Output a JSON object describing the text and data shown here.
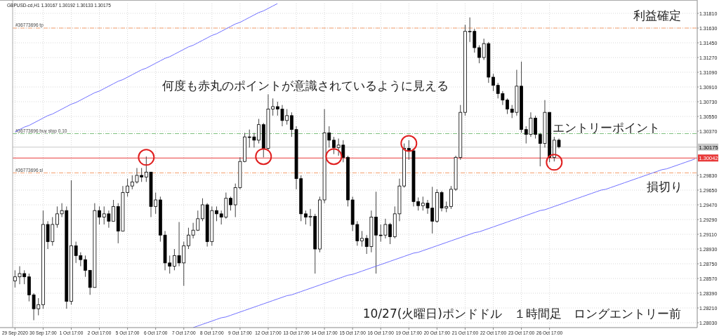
{
  "chart_data": {
    "type": "candlestick",
    "title": "GBPUSD-cd,H1  1.30167 1.30192 1.30133 1.30175",
    "categories": [
      "29 Sep 2020",
      null,
      null,
      null,
      null,
      null,
      "30 Sep 17:00",
      null,
      null,
      null,
      null,
      null,
      "1 Oct 17:00",
      null,
      null,
      null,
      null,
      null,
      "2 Oct 17:00",
      null,
      null,
      null,
      null,
      null,
      "5 Oct 17:00",
      null,
      null,
      null,
      null,
      null,
      "6 Oct 17:00",
      null,
      null,
      null,
      null,
      null,
      "7 Oct 17:00",
      null,
      null,
      null,
      null,
      null,
      "8 Oct 17:00",
      null,
      null,
      null,
      null,
      null,
      "9 Oct 17:00",
      null,
      null,
      null,
      null,
      null,
      "12 Oct 17:00",
      null,
      null,
      null,
      null,
      null,
      "13 Oct 17:00",
      null,
      null,
      null,
      null,
      null,
      "14 Oct 17:00",
      null,
      null,
      null,
      null,
      null,
      "15 Oct 17:00",
      null,
      null,
      null,
      null,
      null,
      "16 Oct 17:00",
      null,
      null,
      null,
      null,
      null,
      "19 Oct 17:00",
      null,
      null,
      null,
      null,
      null,
      "20 Oct 17:00",
      null,
      null,
      null,
      null,
      null,
      "21 Oct 17:00",
      null,
      null,
      null,
      null,
      null,
      "22 Oct 17:00",
      null,
      null,
      null,
      null,
      null,
      "23 Oct 17:00",
      null,
      null,
      null,
      null,
      null,
      "26 Oct 17:00",
      null,
      null,
      null,
      null,
      null,
      null,
      null,
      null,
      null,
      null,
      null,
      null,
      null,
      null,
      null,
      null,
      null,
      null,
      null,
      null,
      null,
      null,
      null,
      null,
      null,
      null,
      null,
      null,
      null,
      null,
      null
    ],
    "ohlc": [
      [
        1.2854,
        1.2867,
        1.2846,
        1.2859
      ],
      [
        1.2859,
        1.2872,
        1.285,
        1.2863
      ],
      [
        1.2863,
        1.2867,
        1.285,
        1.2859
      ],
      [
        1.2859,
        1.2863,
        1.2829,
        1.2837
      ],
      [
        1.2837,
        1.2839,
        1.2806,
        1.282
      ],
      [
        1.282,
        1.2833,
        1.2812,
        1.2825
      ],
      [
        1.2825,
        1.294,
        1.282,
        1.2923
      ],
      [
        1.2923,
        1.2927,
        1.2893,
        1.2902
      ],
      [
        1.2902,
        1.2932,
        1.2897,
        1.2923
      ],
      [
        1.2923,
        1.2945,
        1.2919,
        1.2936
      ],
      [
        1.2936,
        1.2949,
        1.2932,
        1.294
      ],
      [
        1.294,
        1.2945,
        1.282,
        1.2829
      ],
      [
        1.2829,
        1.2977,
        1.2825,
        1.2897
      ],
      [
        1.2897,
        1.2902,
        1.2876,
        1.2885
      ],
      [
        1.2885,
        1.2889,
        1.2872,
        1.288
      ],
      [
        1.288,
        1.2885,
        1.2859,
        1.2867
      ],
      [
        1.2867,
        1.2867,
        1.2837,
        1.2846
      ],
      [
        1.2846,
        1.2949,
        1.2846,
        1.294
      ],
      [
        1.294,
        1.2945,
        1.2923,
        1.2932
      ],
      [
        1.2932,
        1.2945,
        1.2923,
        1.2936
      ],
      [
        1.2936,
        1.294,
        1.2919,
        1.2927
      ],
      [
        1.2927,
        1.2953,
        1.2927,
        1.2945
      ],
      [
        1.2945,
        1.2949,
        1.29,
        1.2915
      ],
      [
        1.2915,
        1.297,
        1.2915,
        1.2962
      ],
      [
        1.2962,
        1.2979,
        1.2957,
        1.297
      ],
      [
        1.297,
        1.2983,
        1.2966,
        1.2975
      ],
      [
        1.2975,
        1.2992,
        1.2973,
        1.2983
      ],
      [
        1.2983,
        1.2992,
        1.2975,
        1.2981
      ],
      [
        1.2981,
        1.3006,
        1.2975,
        1.2987
      ],
      [
        1.2987,
        1.2987,
        1.2932,
        1.2945
      ],
      [
        1.2945,
        1.2962,
        1.2936,
        1.2953
      ],
      [
        1.2953,
        1.2957,
        1.2902,
        1.291
      ],
      [
        1.291,
        1.2915,
        1.2867,
        1.2876
      ],
      [
        1.2876,
        1.2885,
        1.2863,
        1.2872
      ],
      [
        1.2872,
        1.2893,
        1.2867,
        1.2885
      ],
      [
        1.2885,
        1.2926,
        1.2872,
        1.2876
      ],
      [
        1.2876,
        1.2902,
        1.2848,
        1.2897
      ],
      [
        1.2897,
        1.2919,
        1.2893,
        1.291
      ],
      [
        1.291,
        1.2925,
        1.2906,
        1.2916
      ],
      [
        1.2916,
        1.294,
        1.2915,
        1.293
      ],
      [
        1.293,
        1.2955,
        1.2927,
        1.2947
      ],
      [
        1.2947,
        1.2949,
        1.2896,
        1.2902
      ],
      [
        1.2902,
        1.2945,
        1.2897,
        1.294
      ],
      [
        1.294,
        1.2945,
        1.2927,
        1.2936
      ],
      [
        1.2936,
        1.294,
        1.2923,
        1.2932
      ],
      [
        1.2932,
        1.2962,
        1.293,
        1.2955
      ],
      [
        1.2955,
        1.2957,
        1.294,
        1.2947
      ],
      [
        1.2947,
        1.2973,
        1.2932,
        1.2968
      ],
      [
        1.2968,
        1.3005,
        1.2966,
        1.3
      ],
      [
        1.3,
        1.3035,
        1.2999,
        1.303
      ],
      [
        1.303,
        1.3039,
        1.3017,
        1.303
      ],
      [
        1.303,
        1.3035,
        1.3017,
        1.3026
      ],
      [
        1.3026,
        1.3052,
        1.3022,
        1.3045
      ],
      [
        1.3045,
        1.3047,
        1.3005,
        1.3016
      ],
      [
        1.3016,
        1.3082,
        1.3013,
        1.3064
      ],
      [
        1.3064,
        1.3077,
        1.3056,
        1.3067
      ],
      [
        1.3067,
        1.3073,
        1.3056,
        1.3064
      ],
      [
        1.3064,
        1.3069,
        1.3043,
        1.305
      ],
      [
        1.305,
        1.3064,
        1.3045,
        1.3056
      ],
      [
        1.3056,
        1.306,
        1.303,
        1.3039
      ],
      [
        1.3039,
        1.3043,
        1.2966,
        1.2979
      ],
      [
        1.2979,
        1.2983,
        1.2927,
        1.2936
      ],
      [
        1.2936,
        1.294,
        1.2923,
        1.2932
      ],
      [
        1.2932,
        1.2942,
        1.2921,
        1.2933
      ],
      [
        1.2933,
        1.2936,
        1.2863,
        1.2893
      ],
      [
        1.2893,
        1.2957,
        1.2889,
        1.2953
      ],
      [
        1.2953,
        1.3064,
        1.2949,
        1.3035
      ],
      [
        1.3035,
        1.3043,
        1.3017,
        1.3026
      ],
      [
        1.3026,
        1.303,
        1.3009,
        1.3017
      ],
      [
        1.3017,
        1.3028,
        1.3007,
        1.302
      ],
      [
        1.302,
        1.3026,
        1.2999,
        1.3005
      ],
      [
        1.3005,
        1.3007,
        1.2945,
        1.2953
      ],
      [
        1.2953,
        1.2957,
        1.2915,
        1.2923
      ],
      [
        1.2923,
        1.2927,
        1.2897,
        1.2903
      ],
      [
        1.2903,
        1.2915,
        1.2896,
        1.2906
      ],
      [
        1.2906,
        1.291,
        1.2887,
        1.2896
      ],
      [
        1.2896,
        1.294,
        1.2889,
        1.2932
      ],
      [
        1.2932,
        1.2963,
        1.2863,
        1.291
      ],
      [
        1.291,
        1.2923,
        1.2902,
        1.291
      ],
      [
        1.291,
        1.293,
        1.2906,
        1.2923
      ],
      [
        1.2923,
        1.2925,
        1.2899,
        1.2908
      ],
      [
        1.2908,
        1.2945,
        1.2906,
        1.2936
      ],
      [
        1.2936,
        1.2979,
        1.2927,
        1.297
      ],
      [
        1.297,
        1.3022,
        1.2968,
        1.3016
      ],
      [
        1.3016,
        1.3026,
        1.3002,
        1.3013
      ],
      [
        1.3013,
        1.3016,
        1.2945,
        1.2951
      ],
      [
        1.2951,
        1.2956,
        1.294,
        1.2946
      ],
      [
        1.2946,
        1.2957,
        1.294,
        1.2949
      ],
      [
        1.2949,
        1.2953,
        1.2936,
        1.2943
      ],
      [
        1.2943,
        1.2969,
        1.2912,
        1.2927
      ],
      [
        1.2927,
        1.2966,
        1.2925,
        1.2962
      ],
      [
        1.2962,
        1.2964,
        1.2939,
        1.2943
      ],
      [
        1.2943,
        1.2951,
        1.2938,
        1.2945
      ],
      [
        1.2945,
        1.297,
        1.2942,
        1.2966
      ],
      [
        1.2966,
        1.3007,
        1.2964,
        1.3005
      ],
      [
        1.3005,
        1.3069,
        1.3002,
        1.306
      ],
      [
        1.306,
        1.3167,
        1.3056,
        1.3159
      ],
      [
        1.3159,
        1.3176,
        1.3146,
        1.3159
      ],
      [
        1.3159,
        1.3162,
        1.3133,
        1.3139
      ],
      [
        1.3139,
        1.3142,
        1.312,
        1.3127
      ],
      [
        1.3127,
        1.315,
        1.3124,
        1.3144
      ],
      [
        1.3144,
        1.3146,
        1.3096,
        1.3103
      ],
      [
        1.3103,
        1.3107,
        1.3086,
        1.3093
      ],
      [
        1.3093,
        1.3096,
        1.3077,
        1.3083
      ],
      [
        1.3083,
        1.3086,
        1.3069,
        1.3075
      ],
      [
        1.3075,
        1.3077,
        1.3058,
        1.3064
      ],
      [
        1.3064,
        1.3069,
        1.3053,
        1.306
      ],
      [
        1.306,
        1.3112,
        1.3056,
        1.3092
      ],
      [
        1.3092,
        1.3122,
        1.3035,
        1.3039
      ],
      [
        1.3039,
        1.3043,
        1.3022,
        1.3033
      ],
      [
        1.3033,
        1.306,
        1.303,
        1.3053
      ],
      [
        1.3053,
        1.3056,
        1.3028,
        1.3033
      ],
      [
        1.3033,
        1.3035,
        1.2994,
        1.3022
      ],
      [
        1.3022,
        1.3075,
        1.3017,
        1.306
      ],
      [
        1.306,
        1.306,
        1.2999,
        1.3005
      ],
      [
        1.3005,
        1.303,
        1.3,
        1.3026
      ],
      [
        1.3026,
        1.3028,
        1.3016,
        1.3018
      ],
      null,
      null,
      null,
      null,
      null,
      null,
      null,
      null,
      null,
      null,
      null,
      null,
      null,
      null,
      null,
      null,
      null,
      null,
      null,
      null,
      null,
      null,
      null,
      null,
      null,
      null,
      null,
      null,
      null
    ],
    "series": [
      {
        "type": "line",
        "color": "#7070ff",
        "values": [
          1.3036,
          1.3039,
          1.3042,
          1.3044,
          1.3047,
          1.305,
          1.3053,
          1.3056,
          1.3058,
          1.3061,
          1.3064,
          1.3067,
          1.307,
          1.3072,
          1.3075,
          1.3078,
          1.3081,
          1.3084,
          1.3086,
          1.3089,
          1.3092,
          1.3095,
          1.3098,
          1.31,
          1.3103,
          1.3106,
          1.3109,
          1.3112,
          1.3114,
          1.3117,
          1.312,
          1.3123,
          1.3126,
          1.3128,
          1.3131,
          1.3134,
          1.3137,
          1.314,
          1.3142,
          1.3145,
          1.3148,
          1.3151,
          1.3154,
          1.3156,
          1.3159,
          1.3162,
          1.3165,
          1.3168,
          1.317,
          1.3173,
          1.3176,
          1.3179,
          1.3182,
          1.3184,
          1.3187,
          1.319,
          1.3193,
          null,
          null,
          null,
          null,
          null,
          null,
          null,
          null,
          null,
          null,
          null,
          null,
          null,
          null,
          null,
          null,
          null,
          null,
          null,
          null,
          null,
          null,
          null,
          null,
          null,
          null,
          null,
          null,
          null,
          null,
          null,
          null,
          null,
          null,
          null,
          null,
          null,
          null,
          null,
          null,
          null,
          null,
          null,
          null,
          null,
          null,
          null,
          null,
          null,
          null,
          null,
          null,
          null,
          null,
          null,
          null,
          null,
          null,
          null,
          null,
          null,
          null,
          null,
          null,
          null,
          null,
          null,
          null,
          null,
          null,
          null,
          null,
          null,
          null,
          null,
          null,
          null,
          null,
          null,
          null,
          null,
          null,
          null,
          null,
          null,
          null,
          null,
          null,
          null
        ]
      },
      {
        "type": "line",
        "color": "#7070ff",
        "values": [
          null,
          null,
          null,
          null,
          null,
          null,
          null,
          null,
          null,
          null,
          null,
          null,
          null,
          null,
          null,
          null,
          null,
          null,
          null,
          null,
          null,
          null,
          null,
          null,
          null,
          null,
          null,
          null,
          null,
          null,
          null,
          null,
          null,
          null,
          null,
          null,
          null,
          null,
          1.2797,
          1.2799,
          1.2801,
          1.2803,
          1.2805,
          1.2807,
          1.2809,
          1.281,
          1.2812,
          1.2814,
          1.2816,
          1.2818,
          1.282,
          1.2822,
          1.2824,
          1.2826,
          1.2828,
          1.283,
          1.2832,
          1.2834,
          1.2836,
          1.2837,
          1.2839,
          1.2841,
          1.2843,
          1.2845,
          1.2847,
          1.2849,
          1.2851,
          1.2853,
          1.2855,
          1.2857,
          1.2859,
          1.2861,
          1.2862,
          1.2864,
          1.2866,
          1.2868,
          1.287,
          1.2872,
          1.2874,
          1.2876,
          1.2878,
          1.288,
          1.2882,
          1.2884,
          1.2886,
          1.2888,
          1.2889,
          1.2891,
          1.2893,
          1.2895,
          1.2897,
          1.2899,
          1.2901,
          1.2903,
          1.2905,
          1.2907,
          1.2909,
          1.2911,
          1.2913,
          1.2914,
          1.2916,
          1.2918,
          1.292,
          1.2922,
          1.2924,
          1.2926,
          1.2928,
          1.293,
          1.2932,
          1.2934,
          1.2936,
          1.2938,
          1.294,
          1.2941,
          1.2943,
          1.2945,
          1.2947,
          1.2949,
          1.2951,
          1.2953,
          1.2955,
          1.2957,
          1.2959,
          1.2961,
          1.2963,
          1.2965,
          1.2966,
          1.2968,
          1.297,
          1.2972,
          1.2974,
          1.2976,
          1.2978,
          1.298,
          1.2982,
          1.2984,
          1.2986,
          1.2988,
          1.299,
          1.2991,
          1.2993,
          1.2995,
          1.2997,
          1.2999,
          1.3001,
          1.3003
        ]
      },
      {
        "type": "scatter",
        "color": "#e02020",
        "marker": "circle",
        "values": [
          null,
          null,
          null,
          null,
          null,
          null,
          null,
          null,
          null,
          null,
          null,
          null,
          null,
          null,
          null,
          null,
          null,
          null,
          null,
          null,
          null,
          null,
          null,
          null,
          null,
          null,
          null,
          null,
          1.3005,
          null,
          null,
          null,
          null,
          null,
          null,
          null,
          null,
          null,
          null,
          null,
          null,
          null,
          null,
          null,
          null,
          null,
          null,
          null,
          null,
          null,
          null,
          null,
          null,
          1.3006,
          null,
          null,
          null,
          null,
          null,
          null,
          null,
          null,
          null,
          null,
          null,
          null,
          null,
          null,
          1.3006,
          null,
          null,
          null,
          null,
          null,
          null,
          null,
          null,
          null,
          null,
          null,
          null,
          null,
          null,
          null,
          1.3022,
          null,
          null,
          null,
          null,
          null,
          null,
          null,
          null,
          null,
          null,
          null,
          null,
          null,
          null,
          null,
          null,
          null,
          null,
          null,
          null,
          null,
          null,
          null,
          null,
          null,
          null,
          null,
          null,
          null,
          null,
          1.2999,
          null,
          null,
          null,
          null,
          null,
          null,
          null,
          null,
          null,
          null,
          null,
          null,
          null,
          null,
          null,
          null,
          null,
          null,
          null,
          null,
          null,
          null,
          null,
          null,
          null,
          null,
          null,
          null,
          null,
          null
        ]
      }
    ],
    "ylim": [
      1.2797,
      1.3193
    ],
    "yticks": [
      {
        "value": 1.3181,
        "label": "1.31810"
      },
      {
        "value": 1.3163,
        "label": "1.31630"
      },
      {
        "value": 1.3145,
        "label": "1.31450"
      },
      {
        "value": 1.3127,
        "label": "1.31270"
      },
      {
        "value": 1.3109,
        "label": "1.31090"
      },
      {
        "value": 1.3091,
        "label": "1.30910"
      },
      {
        "value": 1.3073,
        "label": "1.30730"
      },
      {
        "value": 1.3055,
        "label": "1.30550"
      },
      {
        "value": 1.3037,
        "label": "1.30370"
      },
      {
        "value": 1.2983,
        "label": "1.29830"
      },
      {
        "value": 1.2965,
        "label": "1.29650"
      },
      {
        "value": 1.2947,
        "label": "1.29470"
      },
      {
        "value": 1.2929,
        "label": "1.29290"
      },
      {
        "value": 1.2911,
        "label": "1.29110"
      },
      {
        "value": 1.2893,
        "label": "1.28930"
      },
      {
        "value": 1.2875,
        "label": "1.28750"
      },
      {
        "value": 1.2857,
        "label": "1.28570"
      },
      {
        "value": 1.2839,
        "label": "1.28390"
      },
      {
        "value": 1.2821,
        "label": "1.28210"
      },
      {
        "value": 1.2803,
        "label": "1.28030"
      }
    ],
    "ref_lines": [
      {
        "axis": "y",
        "value": 1.3163,
        "label": "#36773696 tp",
        "color": "#f5a06e",
        "line_style": "dashed"
      },
      {
        "axis": "y",
        "value": 1.3034,
        "label": "#36773696 buy stop 0.10",
        "color": "#80c080",
        "line_style": "dashed"
      },
      {
        "axis": "y",
        "value": 1.2986,
        "label": "#36773696 sl",
        "color": "#f5a06e",
        "line_style": "dashed"
      },
      {
        "axis": "y",
        "value": 1.30175,
        "label": "1.30175",
        "color": "#c8c8c8",
        "line_style": "solid"
      },
      {
        "axis": "y",
        "value": 1.30042,
        "label": "1.30042",
        "color": "#e83a3a",
        "line_style": "solid"
      }
    ],
    "annotations": [
      "何度も赤丸のポイントが意識されているように見える",
      "利益確定",
      "エントリーポイント",
      "損切り",
      "10/27(火曜日)ポンドドル　１時間足　ロングエントリー前"
    ],
    "grid": true
  }
}
